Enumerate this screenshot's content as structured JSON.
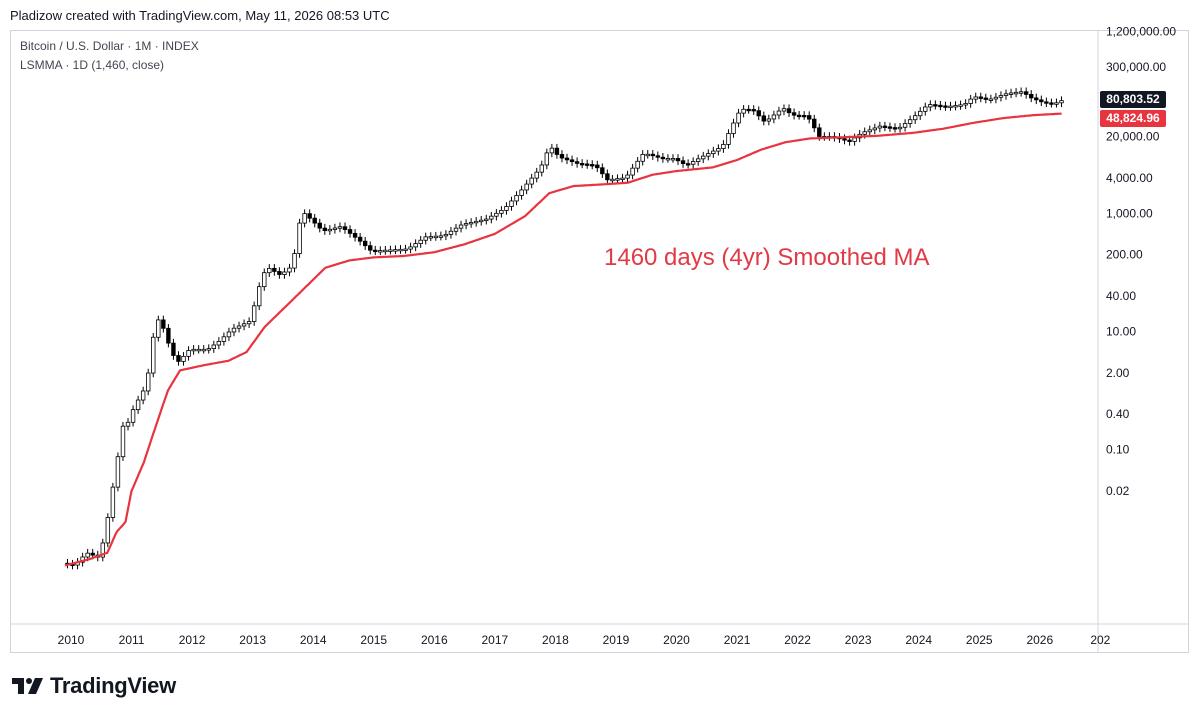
{
  "header": {
    "attribution": "Pladizow created with TradingView.com, May 11, 2026 08:53 UTC"
  },
  "legend": {
    "symbol_line": "Bitcoin / U.S. Dollar · 1M · INDEX",
    "indicator_line": "LSMMA · 1D (1,460, close)"
  },
  "annotation": {
    "text": "1460 days (4yr) Smoothed MA",
    "color": "#e03a45"
  },
  "price_tags": {
    "last_price": "80,803.52",
    "ma_value": "48,824.96"
  },
  "footer": {
    "brand": "TradingView"
  },
  "colors": {
    "candle_up": "#ffffff",
    "candle_down": "#000000",
    "candle_outline": "#000000",
    "ma_line": "#e8343f",
    "axis_text": "#131722",
    "grid_border": "#d1d4dc"
  },
  "chart_data": {
    "type": "line",
    "scale": "log",
    "title": "",
    "xlabel": "",
    "ylabel": "",
    "x_ticks": [
      "2010",
      "2011",
      "2012",
      "2013",
      "2014",
      "2015",
      "2016",
      "2017",
      "2018",
      "2019",
      "2020",
      "2021",
      "2022",
      "2023",
      "2024",
      "2025",
      "2026",
      "202"
    ],
    "y_ticks": [
      {
        "label": "1,200,000.00",
        "value": 1200000
      },
      {
        "label": "300,000.00",
        "value": 300000
      },
      {
        "label": "20,000.00",
        "value": 20000
      },
      {
        "label": "4,000.00",
        "value": 4000
      },
      {
        "label": "1,000.00",
        "value": 1000
      },
      {
        "label": "200.00",
        "value": 200
      },
      {
        "label": "40.00",
        "value": 40
      },
      {
        "label": "10.00",
        "value": 10
      },
      {
        "label": "2.00",
        "value": 2
      },
      {
        "label": "0.40",
        "value": 0.4
      },
      {
        "label": "0.10",
        "value": 0.1
      },
      {
        "label": "0.02",
        "value": 0.02
      }
    ],
    "series": [
      {
        "name": "Bitcoin / U.S. Dollar",
        "kind": "price-monthly-approx",
        "points": [
          [
            2009.9,
            0.0012
          ],
          [
            2010.1,
            0.0011
          ],
          [
            2010.3,
            0.0018
          ],
          [
            2010.5,
            0.0015
          ],
          [
            2010.6,
            0.0035
          ],
          [
            2010.8,
            0.06
          ],
          [
            2010.9,
            0.25
          ],
          [
            2011.0,
            0.3
          ],
          [
            2011.1,
            0.6
          ],
          [
            2011.2,
            0.8
          ],
          [
            2011.3,
            1.5
          ],
          [
            2011.4,
            8
          ],
          [
            2011.5,
            18
          ],
          [
            2011.6,
            9
          ],
          [
            2011.7,
            4.5
          ],
          [
            2011.8,
            3
          ],
          [
            2011.9,
            3.8
          ],
          [
            2012.0,
            5
          ],
          [
            2012.3,
            5
          ],
          [
            2012.5,
            7
          ],
          [
            2012.7,
            11
          ],
          [
            2013.0,
            15
          ],
          [
            2013.2,
            90
          ],
          [
            2013.3,
            120
          ],
          [
            2013.5,
            90
          ],
          [
            2013.7,
            130
          ],
          [
            2013.85,
            1100
          ],
          [
            2014.0,
            800
          ],
          [
            2014.2,
            500
          ],
          [
            2014.5,
            600
          ],
          [
            2014.8,
            350
          ],
          [
            2015.0,
            230
          ],
          [
            2015.3,
            240
          ],
          [
            2015.6,
            250
          ],
          [
            2015.9,
            400
          ],
          [
            2016.2,
            420
          ],
          [
            2016.5,
            650
          ],
          [
            2016.9,
            800
          ],
          [
            2017.2,
            1200
          ],
          [
            2017.5,
            2600
          ],
          [
            2017.8,
            6000
          ],
          [
            2017.95,
            14000
          ],
          [
            2018.1,
            9000
          ],
          [
            2018.4,
            7000
          ],
          [
            2018.7,
            6500
          ],
          [
            2018.9,
            3700
          ],
          [
            2019.2,
            4000
          ],
          [
            2019.5,
            10500
          ],
          [
            2019.8,
            8500
          ],
          [
            2020.0,
            8500
          ],
          [
            2020.2,
            6500
          ],
          [
            2020.5,
            9500
          ],
          [
            2020.8,
            13500
          ],
          [
            2020.95,
            29000
          ],
          [
            2021.1,
            58000
          ],
          [
            2021.3,
            57000
          ],
          [
            2021.5,
            35000
          ],
          [
            2021.8,
            61000
          ],
          [
            2021.95,
            46000
          ],
          [
            2022.2,
            45000
          ],
          [
            2022.4,
            20000
          ],
          [
            2022.6,
            20000
          ],
          [
            2022.9,
            16500
          ],
          [
            2023.1,
            23000
          ],
          [
            2023.4,
            30000
          ],
          [
            2023.7,
            27000
          ],
          [
            2023.95,
            42000
          ],
          [
            2024.2,
            70000
          ],
          [
            2024.5,
            64000
          ],
          [
            2024.8,
            70000
          ],
          [
            2024.95,
            95000
          ],
          [
            2025.2,
            84000
          ],
          [
            2025.5,
            107000
          ],
          [
            2025.75,
            115000
          ],
          [
            2025.9,
            90000
          ],
          [
            2026.1,
            75000
          ],
          [
            2026.3,
            72000
          ],
          [
            2026.36,
            80803.52
          ]
        ]
      },
      {
        "name": "LSMMA · 1D (1,460, close)",
        "kind": "moving-average-approx",
        "points": [
          [
            2009.9,
            0.0011
          ],
          [
            2010.3,
            0.0014
          ],
          [
            2010.6,
            0.0018
          ],
          [
            2010.75,
            0.004
          ],
          [
            2010.9,
            0.006
          ],
          [
            2011.0,
            0.02
          ],
          [
            2011.2,
            0.06
          ],
          [
            2011.4,
            0.25
          ],
          [
            2011.6,
            1.0
          ],
          [
            2011.8,
            2.2
          ],
          [
            2012.2,
            2.7
          ],
          [
            2012.6,
            3.2
          ],
          [
            2012.9,
            4.5
          ],
          [
            2013.2,
            12
          ],
          [
            2013.6,
            30
          ],
          [
            2013.9,
            60
          ],
          [
            2014.2,
            120
          ],
          [
            2014.6,
            160
          ],
          [
            2015.0,
            180
          ],
          [
            2015.5,
            190
          ],
          [
            2016.0,
            220
          ],
          [
            2016.5,
            300
          ],
          [
            2017.0,
            450
          ],
          [
            2017.5,
            900
          ],
          [
            2017.9,
            2200
          ],
          [
            2018.3,
            2900
          ],
          [
            2018.8,
            3100
          ],
          [
            2019.2,
            3300
          ],
          [
            2019.6,
            4500
          ],
          [
            2020.0,
            5200
          ],
          [
            2020.6,
            6000
          ],
          [
            2021.0,
            8000
          ],
          [
            2021.4,
            12000
          ],
          [
            2021.8,
            16000
          ],
          [
            2022.2,
            18500
          ],
          [
            2022.8,
            19500
          ],
          [
            2023.3,
            20500
          ],
          [
            2023.9,
            23000
          ],
          [
            2024.4,
            27000
          ],
          [
            2024.9,
            34000
          ],
          [
            2025.4,
            41000
          ],
          [
            2025.9,
            46000
          ],
          [
            2026.36,
            48824.96
          ]
        ]
      }
    ],
    "x_range": [
      2009.6,
      2027.0
    ],
    "y_range": [
      0.0005,
      2000000
    ],
    "grid": false,
    "legend_placement": "top-left"
  }
}
